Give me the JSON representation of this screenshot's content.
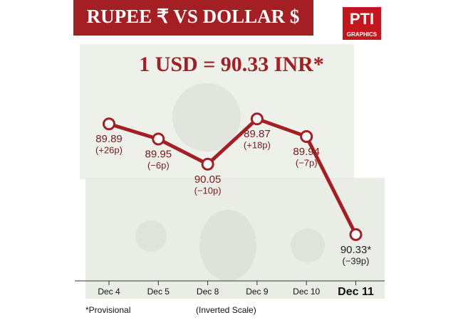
{
  "chart_data": {
    "type": "line",
    "title": "RUPEE ₹   VS   DOLLAR $",
    "logo": "PTI",
    "logo_subtitle": "GRAPHICS",
    "headline": "1 USD = 90.33 INR*",
    "categories": [
      "Dec 4",
      "Dec 5",
      "Dec 8",
      "Dec 9",
      "Dec 10",
      "Dec 11"
    ],
    "values": [
      89.89,
      89.95,
      90.05,
      89.87,
      89.94,
      90.33
    ],
    "value_labels": [
      "89.89",
      "89.95",
      "90.05",
      "89.87",
      "89.94",
      "90.33*"
    ],
    "changes": [
      "(+26p)",
      "(−6p)",
      "(−10p)",
      "(+18p)",
      "(−7p)",
      "(−39p)"
    ],
    "color": "#a31f24",
    "ylim": [
      89.68,
      90.5
    ],
    "inverted_scale": true,
    "footnote": "*Provisional",
    "scale_note": "(Inverted Scale)"
  }
}
